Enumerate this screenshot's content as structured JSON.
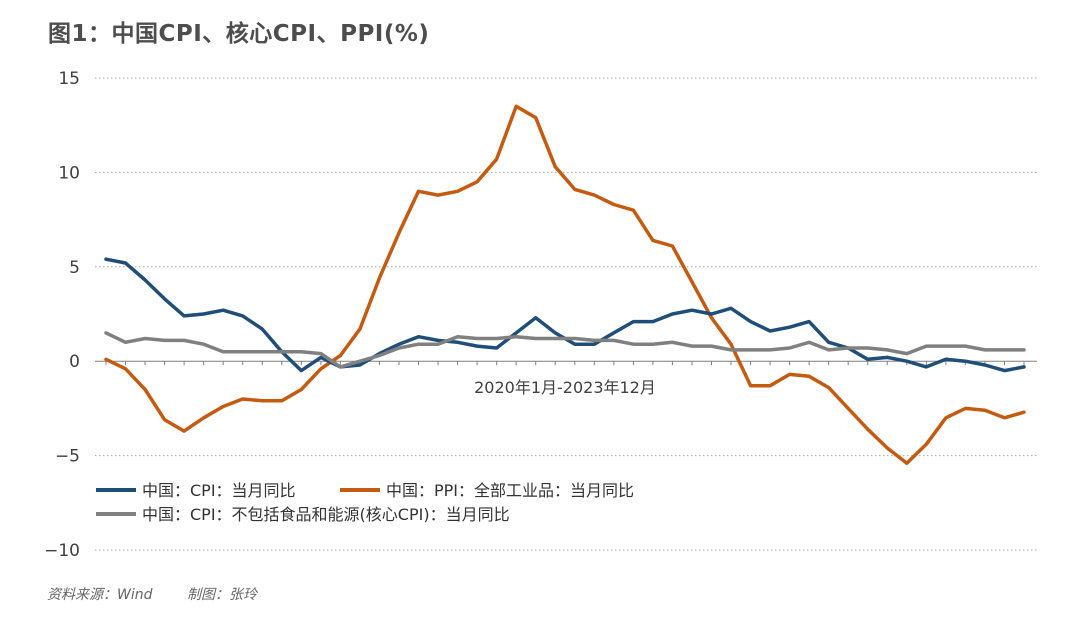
{
  "chart_data": {
    "type": "line",
    "title": "图1：中国CPI、核心CPI、PPI(%)",
    "xlabel": "2020年1月-2023年12月",
    "ylabel": "",
    "ylim": [
      -10,
      15
    ],
    "yticks": [
      -10,
      -5,
      0,
      5,
      10,
      15
    ],
    "grid": true,
    "legend_position": "bottom-left",
    "x_start": "2020-01",
    "x_end": "2023-12",
    "series": [
      {
        "name": "中国：CPI：当月同比",
        "color": "#1f4e79",
        "values": [
          5.4,
          5.2,
          4.3,
          3.3,
          2.4,
          2.5,
          2.7,
          2.4,
          1.7,
          0.5,
          -0.5,
          0.2,
          -0.3,
          -0.2,
          0.4,
          0.9,
          1.3,
          1.1,
          1.0,
          0.8,
          0.7,
          1.5,
          2.3,
          1.5,
          0.9,
          0.9,
          1.5,
          2.1,
          2.1,
          2.5,
          2.7,
          2.5,
          2.8,
          2.1,
          1.6,
          1.8,
          2.1,
          1.0,
          0.7,
          0.1,
          0.2,
          0.0,
          -0.3,
          0.1,
          0.0,
          -0.2,
          -0.5,
          -0.3
        ]
      },
      {
        "name": "中国：PPI：全部工业品：当月同比",
        "color": "#c55a11",
        "values": [
          0.1,
          -0.4,
          -1.5,
          -3.1,
          -3.7,
          -3.0,
          -2.4,
          -2.0,
          -2.1,
          -2.1,
          -1.5,
          -0.4,
          0.3,
          1.7,
          4.4,
          6.8,
          9.0,
          8.8,
          9.0,
          9.5,
          10.7,
          13.5,
          12.9,
          10.3,
          9.1,
          8.8,
          8.3,
          8.0,
          6.4,
          6.1,
          4.2,
          2.3,
          0.9,
          -1.3,
          -1.3,
          -0.7,
          -0.8,
          -1.4,
          -2.5,
          -3.6,
          -4.6,
          -5.4,
          -4.4,
          -3.0,
          -2.5,
          -2.6,
          -3.0,
          -2.7
        ]
      },
      {
        "name": "中国：CPI：不包括食品和能源(核心CPI)：当月同比",
        "color": "#808080",
        "values": [
          1.5,
          1.0,
          1.2,
          1.1,
          1.1,
          0.9,
          0.5,
          0.5,
          0.5,
          0.5,
          0.5,
          0.4,
          -0.3,
          0.0,
          0.3,
          0.7,
          0.9,
          0.9,
          1.3,
          1.2,
          1.2,
          1.3,
          1.2,
          1.2,
          1.2,
          1.1,
          1.1,
          0.9,
          0.9,
          1.0,
          0.8,
          0.8,
          0.6,
          0.6,
          0.6,
          0.7,
          1.0,
          0.6,
          0.7,
          0.7,
          0.6,
          0.4,
          0.8,
          0.8,
          0.8,
          0.6,
          0.6,
          0.6
        ]
      }
    ]
  },
  "footer": {
    "source": "资料来源：Wind",
    "author": "制图：张玲"
  }
}
